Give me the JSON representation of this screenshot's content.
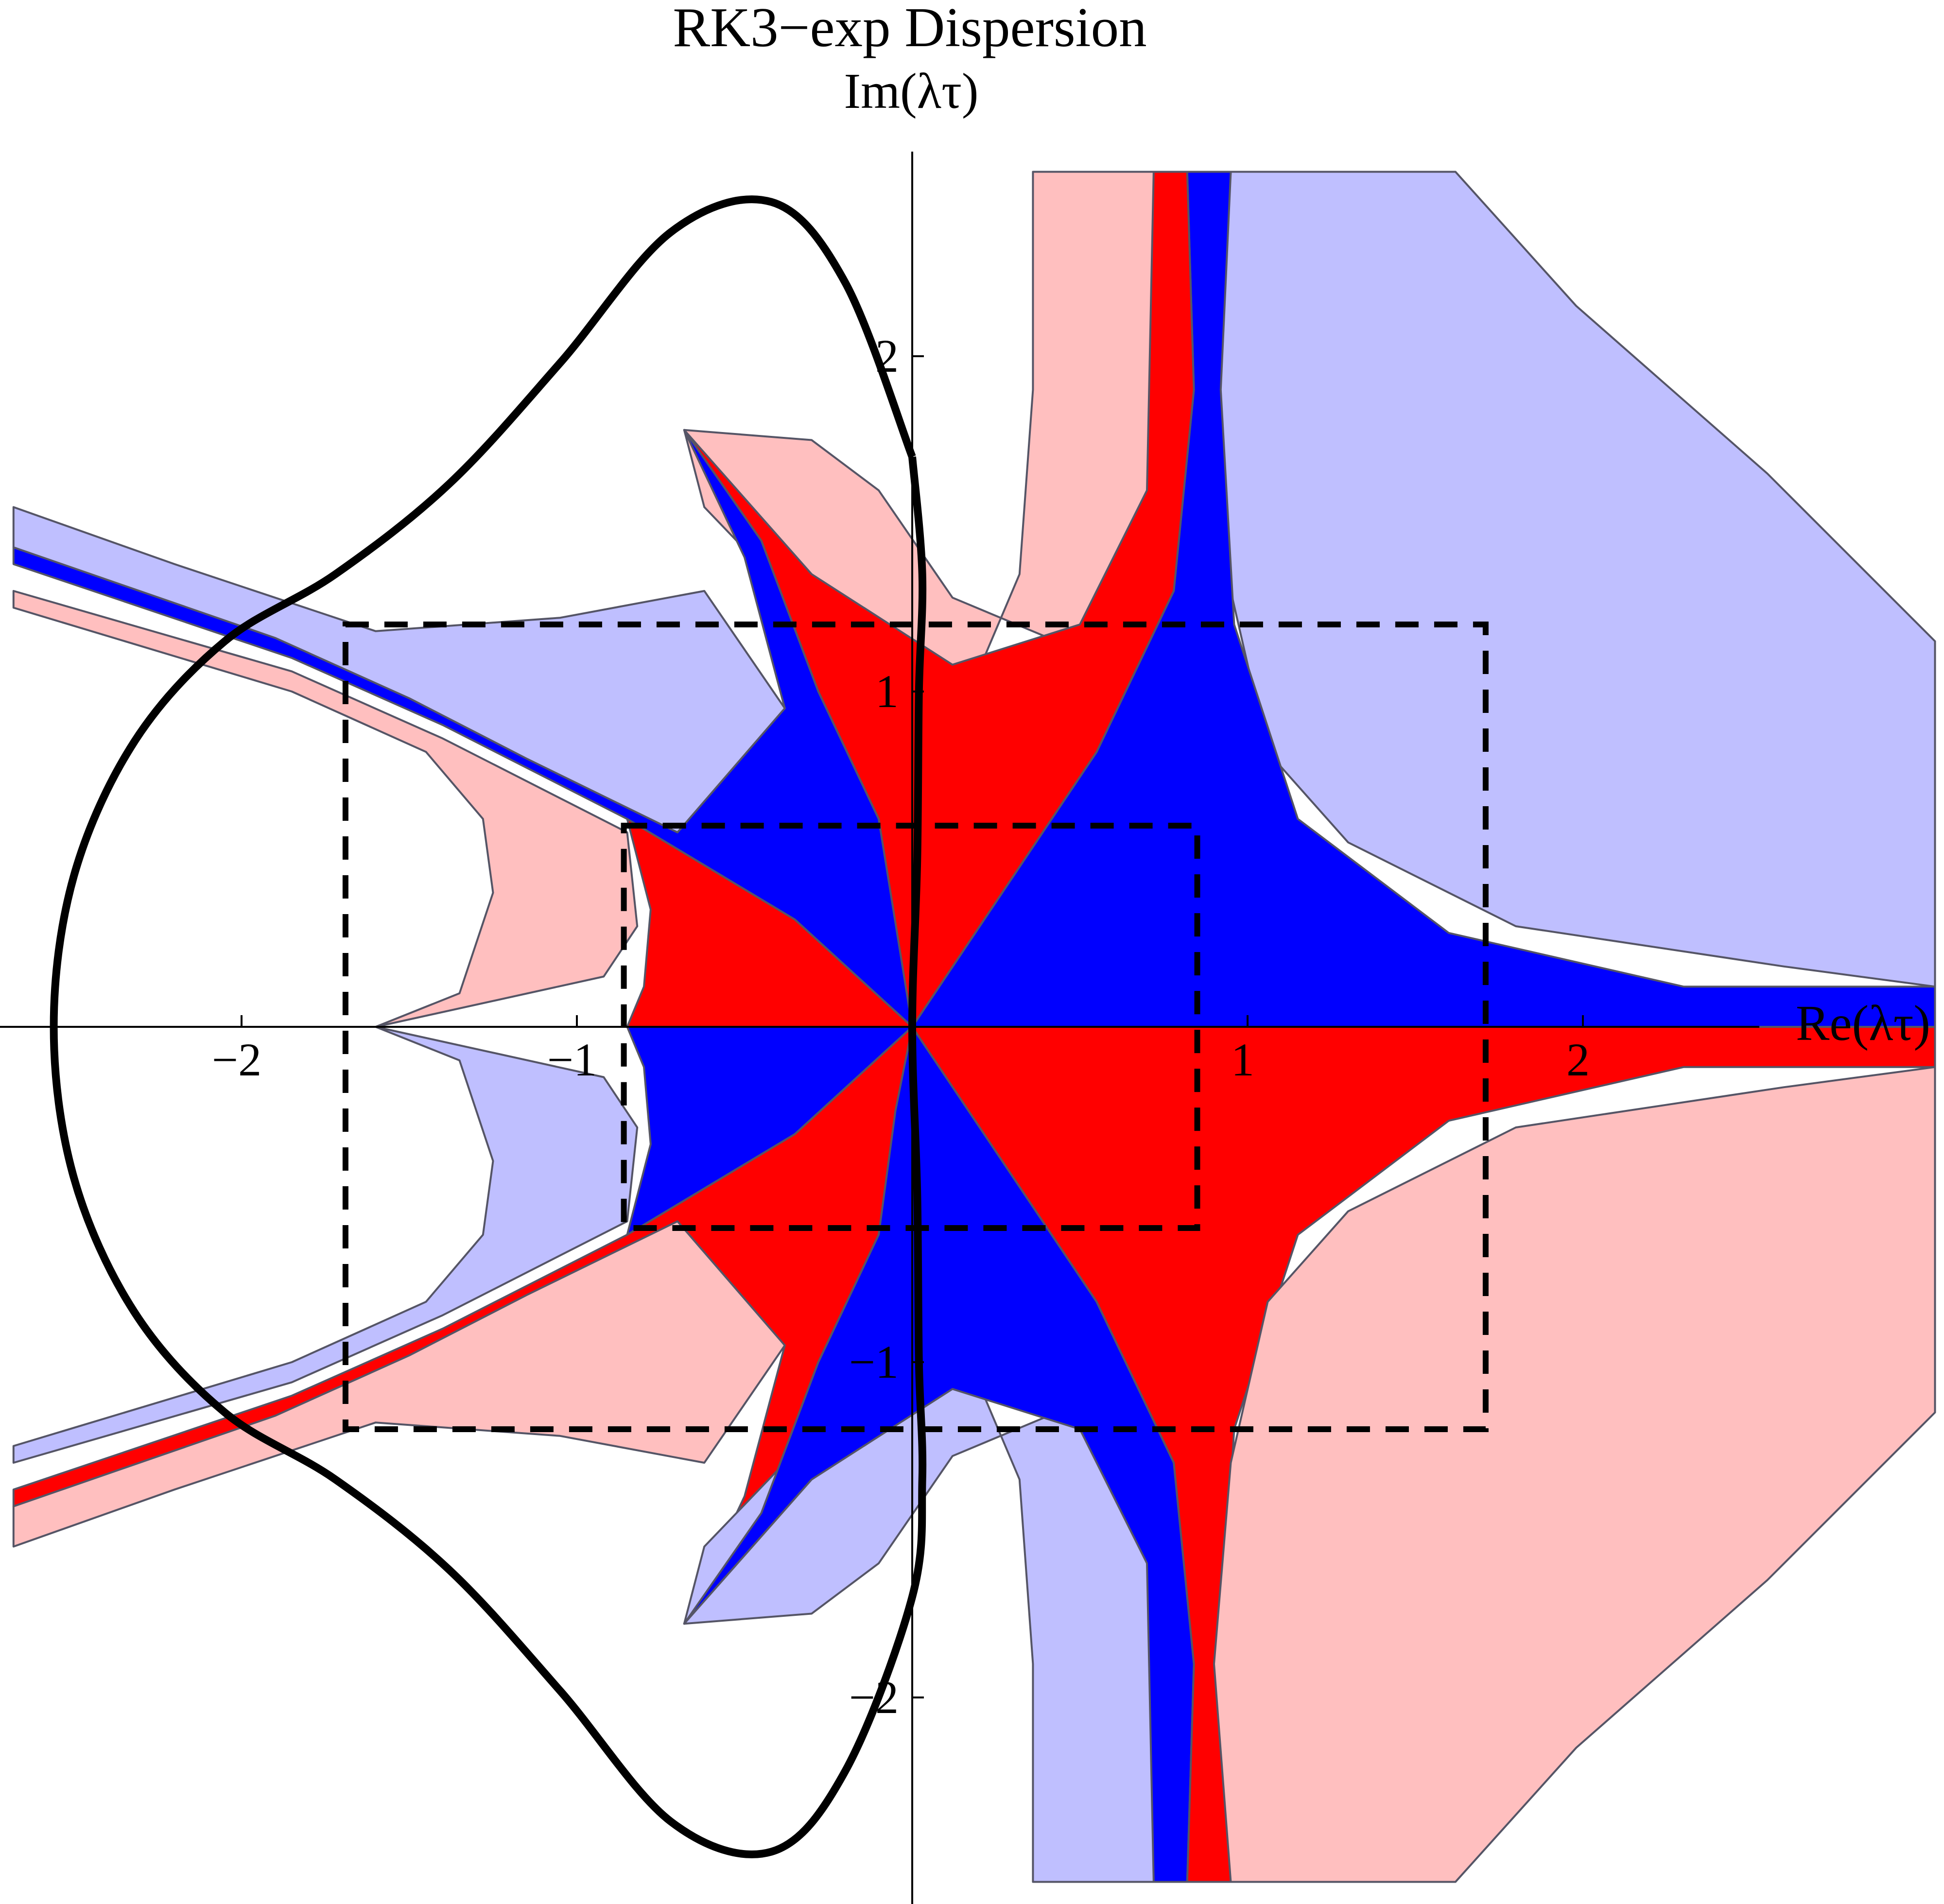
{
  "chart_data": {
    "type": "region-plot",
    "title": "RK3−exp Dispersion",
    "xlabel": "Re(λτ)",
    "ylabel": "Im(λτ)",
    "xlim": [
      -2.68,
      3.05
    ],
    "ylim": [
      -2.6,
      2.6
    ],
    "x_ticks": [
      {
        "value": -2,
        "label": "−2"
      },
      {
        "value": -1,
        "label": "−1"
      },
      {
        "value": 1,
        "label": "1"
      },
      {
        "value": 2,
        "label": "2"
      }
    ],
    "y_ticks": [
      {
        "value": 2,
        "label": "2"
      },
      {
        "value": 1,
        "label": "1"
      },
      {
        "value": -1,
        "label": "−1"
      },
      {
        "value": -2,
        "label": "−2"
      }
    ],
    "axes_through_origin": true,
    "grid": false,
    "legend": "none",
    "colors": {
      "red": "#ff0000",
      "blue": "#0000ff",
      "light_red": "#ffbfbf",
      "light_blue": "#bfbfff",
      "stability_curve": "#000000",
      "box": "#000000"
    },
    "stability_boundary": {
      "style": "solid",
      "color": "#000000",
      "points": [
        [
          0.0,
          1.7
        ],
        [
          -0.2,
          2.22
        ],
        [
          -0.42,
          2.46
        ],
        [
          -0.72,
          2.37
        ],
        [
          -1.05,
          1.98
        ],
        [
          -1.38,
          1.62
        ],
        [
          -1.72,
          1.35
        ],
        [
          -2.05,
          1.15
        ],
        [
          -2.32,
          0.85
        ],
        [
          -2.5,
          0.45
        ],
        [
          -2.56,
          0.0
        ],
        [
          -2.5,
          -0.45
        ],
        [
          -2.32,
          -0.85
        ],
        [
          -2.05,
          -1.15
        ],
        [
          -1.72,
          -1.35
        ],
        [
          -1.38,
          -1.62
        ],
        [
          -1.05,
          -1.98
        ],
        [
          -0.72,
          -2.37
        ],
        [
          -0.42,
          -2.46
        ],
        [
          -0.2,
          -2.22
        ],
        [
          0.0,
          -1.7
        ],
        [
          0.03,
          -1.35
        ],
        [
          0.02,
          -1.0
        ],
        [
          0.015,
          -0.5
        ],
        [
          0.0,
          0.0
        ],
        [
          0.015,
          0.5
        ],
        [
          0.02,
          1.0
        ],
        [
          0.03,
          1.35
        ],
        [
          0.0,
          1.7
        ]
      ]
    },
    "dashed_boxes": [
      {
        "name": "outer",
        "x": [
          -1.69,
          1.71
        ],
        "y": [
          -1.2,
          1.2
        ]
      },
      {
        "name": "inner",
        "x": [
          -0.86,
          0.85
        ],
        "y": [
          -0.6,
          0.6
        ]
      }
    ]
  }
}
